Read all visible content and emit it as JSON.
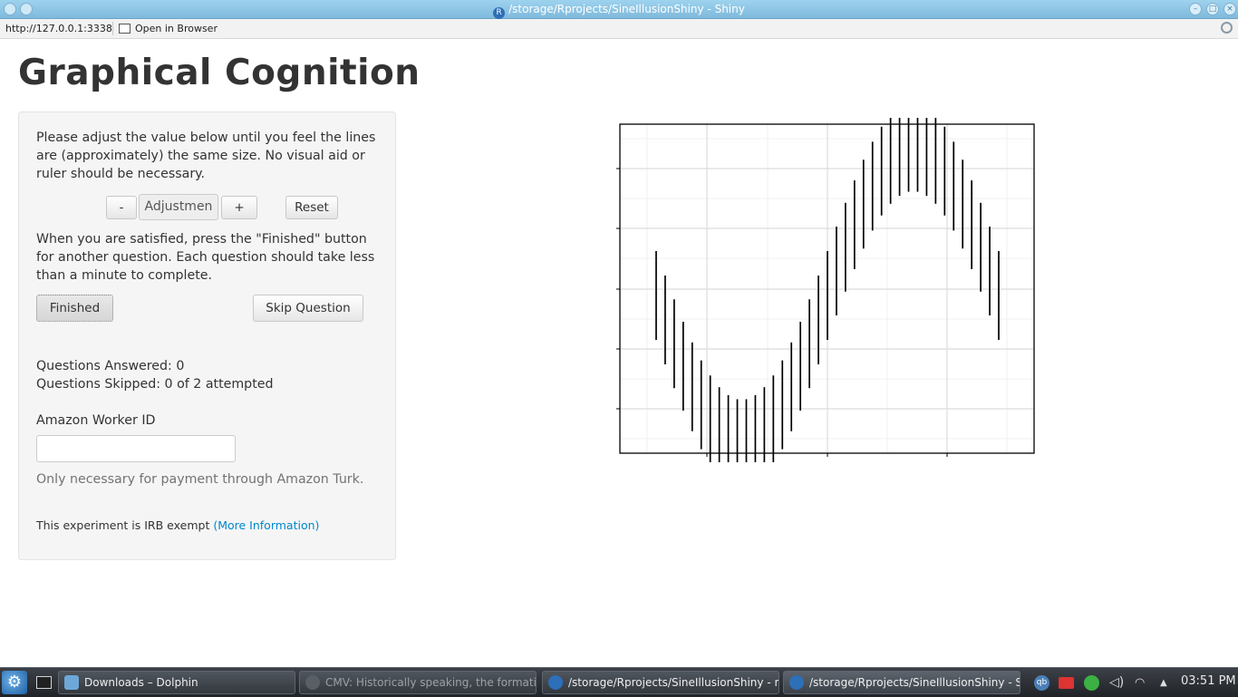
{
  "window": {
    "title": "/storage/Rprojects/SineIllusionShiny - Shiny",
    "r_icon_glyph": "R"
  },
  "address_bar": {
    "url": "http://127.0.0.1:3338",
    "open_in_browser_label": "Open in Browser"
  },
  "page": {
    "title": "Graphical Cognition",
    "instructions": "Please adjust the value below until you feel the lines are (approximately) the same size. No visual aid or ruler should be necessary.",
    "adjust": {
      "minus_label": "-",
      "value_text": "Adjustmen",
      "plus_label": "+",
      "reset_label": "Reset"
    },
    "satisfied_text": "When you are satisfied, press the \"Finished\" button for another question. Each question should take less than a minute to complete.",
    "finished_label": "Finished",
    "skip_label": "Skip Question",
    "questions_answered": "Questions Answered: 0",
    "questions_skipped": "Questions Skipped: 0 of 2 attempted",
    "worker_id_label": "Amazon Worker ID",
    "worker_id_value": "",
    "worker_id_help": "Only necessary for payment through Amazon Turk.",
    "irb_text": "This experiment is IRB exempt ",
    "more_info_link": "(More Information)"
  },
  "chart_data": {
    "type": "sine-illusion segments",
    "title": "",
    "xlabel": "",
    "ylabel": "",
    "axis_tick_labels": "none shown",
    "grid": "on (major and minor)",
    "segment_count": 39,
    "segment_shape": "vertical line segments of equal length centered on a sine curve",
    "centers_x": "evenly spaced over one full period",
    "centers_y": "sin(x), starting near 0, minimum near 28%, maximum near 72% of period"
  },
  "taskbar": {
    "tasks": [
      {
        "label": "Downloads – Dolphin"
      },
      {
        "label": "CMV: Historically speaking, the formation"
      },
      {
        "label": "/storage/Rprojects/SineIllusionShiny - m"
      },
      {
        "label": "/storage/Rprojects/SineIllusionShiny - Sh"
      }
    ],
    "tray_qb": "qb",
    "clock": "03:51 PM"
  },
  "colors": {
    "titlebar": "#8ec6e6",
    "well_bg": "#f5f5f5",
    "link": "#0088cc",
    "taskbar": "#2b2f35"
  }
}
